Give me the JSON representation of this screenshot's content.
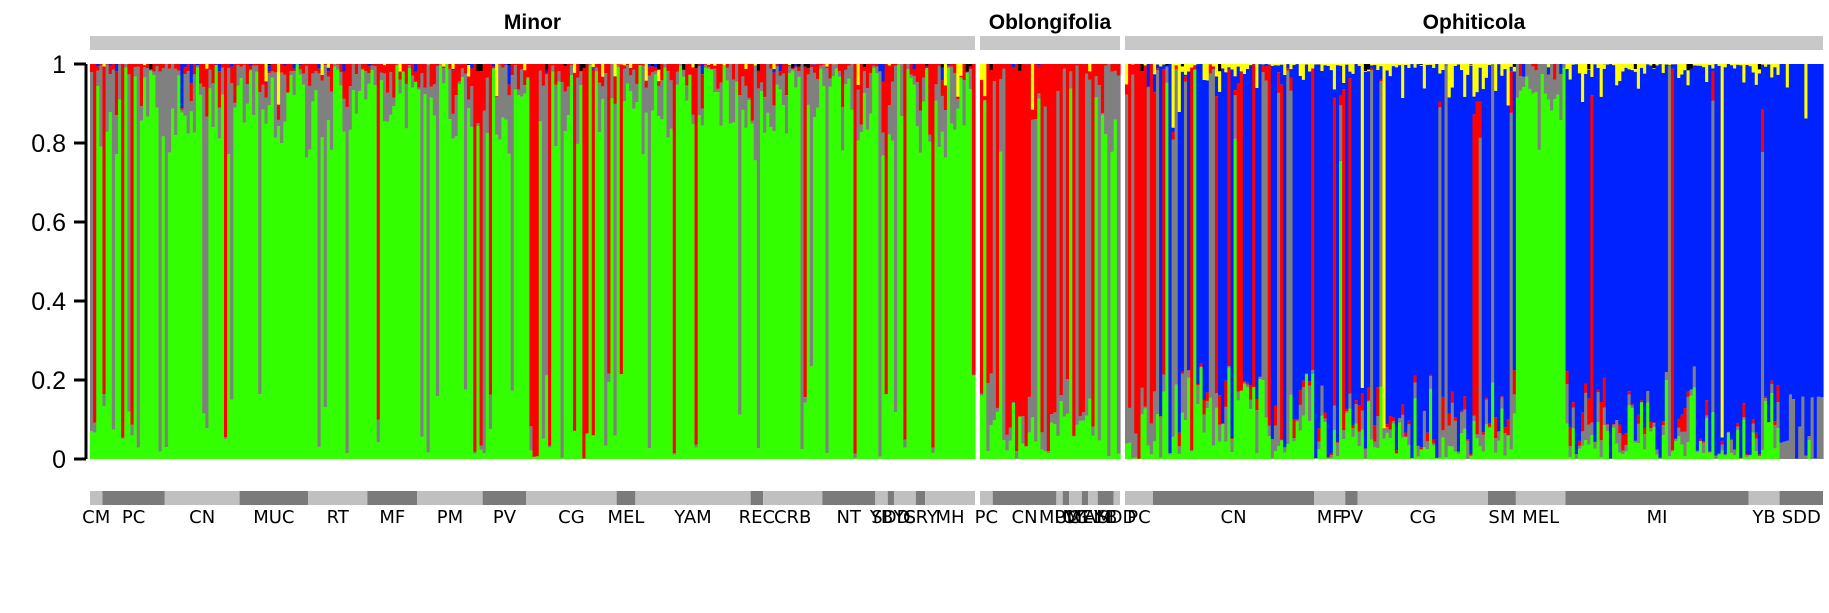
{
  "chart_data": {
    "type": "bar",
    "stacked": true,
    "normalized": true,
    "ylim": [
      0,
      1
    ],
    "yticks": [
      "0",
      "0.2",
      "0.4",
      "0.6",
      "0.8",
      "1"
    ],
    "groups": [
      {
        "name": "Minor",
        "bars": 284,
        "populations": [
          {
            "label": "CM",
            "n": 4
          },
          {
            "label": "PC",
            "n": 20
          },
          {
            "label": "CN",
            "n": 24
          },
          {
            "label": "MUC",
            "n": 22
          },
          {
            "label": "RT",
            "n": 19
          },
          {
            "label": "MF",
            "n": 16
          },
          {
            "label": "PM",
            "n": 21
          },
          {
            "label": "PV",
            "n": 14
          },
          {
            "label": "CG",
            "n": 29
          },
          {
            "label": "MEL",
            "n": 6
          },
          {
            "label": "YAM",
            "n": 37
          },
          {
            "label": "REC",
            "n": 4
          },
          {
            "label": "CRB",
            "n": 19
          },
          {
            "label": "NT",
            "n": 17
          },
          {
            "label": "YB",
            "n": 4
          },
          {
            "label": "SDD",
            "n": 2
          },
          {
            "label": "YS",
            "n": 7
          },
          {
            "label": "CRY",
            "n": 3
          },
          {
            "label": "MH",
            "n": 16
          }
        ]
      },
      {
        "name": "Oblongifolia",
        "bars": 44,
        "populations": [
          {
            "label": "PC",
            "n": 4
          },
          {
            "label": "CN",
            "n": 20
          },
          {
            "label": "MUC",
            "n": 2
          },
          {
            "label": "PV",
            "n": 2
          },
          {
            "label": "CG",
            "n": 4
          },
          {
            "label": "MEL",
            "n": 2
          },
          {
            "label": "YAM",
            "n": 3
          },
          {
            "label": "YB",
            "n": 5
          },
          {
            "label": "SDD",
            "n": 2
          }
        ]
      },
      {
        "name": "Ophiticola",
        "bars": 225,
        "populations": [
          {
            "label": "PC",
            "n": 9
          },
          {
            "label": "CN",
            "n": 52
          },
          {
            "label": "MF",
            "n": 10
          },
          {
            "label": "PV",
            "n": 4
          },
          {
            "label": "CG",
            "n": 42
          },
          {
            "label": "SM",
            "n": 9
          },
          {
            "label": "MEL",
            "n": 16
          },
          {
            "label": "MI",
            "n": 59
          },
          {
            "label": "YB",
            "n": 10
          },
          {
            "label": "SDD",
            "n": 14
          }
        ]
      }
    ],
    "clusters": [
      {
        "color": "#33ff00"
      },
      {
        "color": "#808080"
      },
      {
        "color": "#ff0000"
      },
      {
        "color": "#0022ff"
      },
      {
        "color": "#ffff00"
      },
      {
        "color": "#000000"
      }
    ]
  },
  "colors": {
    "group_bar": "#c8c8c8",
    "pop_light": "#c0c0c0",
    "pop_dark": "#7b7b7b",
    "axis": "#000000"
  }
}
